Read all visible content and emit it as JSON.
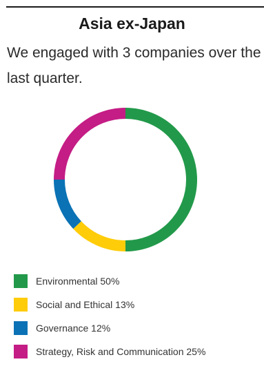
{
  "header": {
    "title": "Asia ex-Japan",
    "subtitle": "We engaged with 3 companies over the last quarter."
  },
  "chart_data": {
    "type": "pie",
    "style": "donut",
    "legend_placement": "bottom-left",
    "start": "top",
    "direction": "clockwise",
    "slices": [
      {
        "label": "Environmental",
        "value": 50,
        "color": "#22994a",
        "display": "Environmental 50%"
      },
      {
        "label": "Social and Ethical",
        "value": 13,
        "color": "#ffcc0a",
        "display": "Social and Ethical 13%"
      },
      {
        "label": "Governance",
        "value": 12,
        "color": "#0a72b5",
        "display": "Governance 12%"
      },
      {
        "label": "Strategy, Risk and Communication",
        "value": 25,
        "color": "#c41d85",
        "display": "Strategy, Risk and Communication 25%"
      }
    ]
  }
}
